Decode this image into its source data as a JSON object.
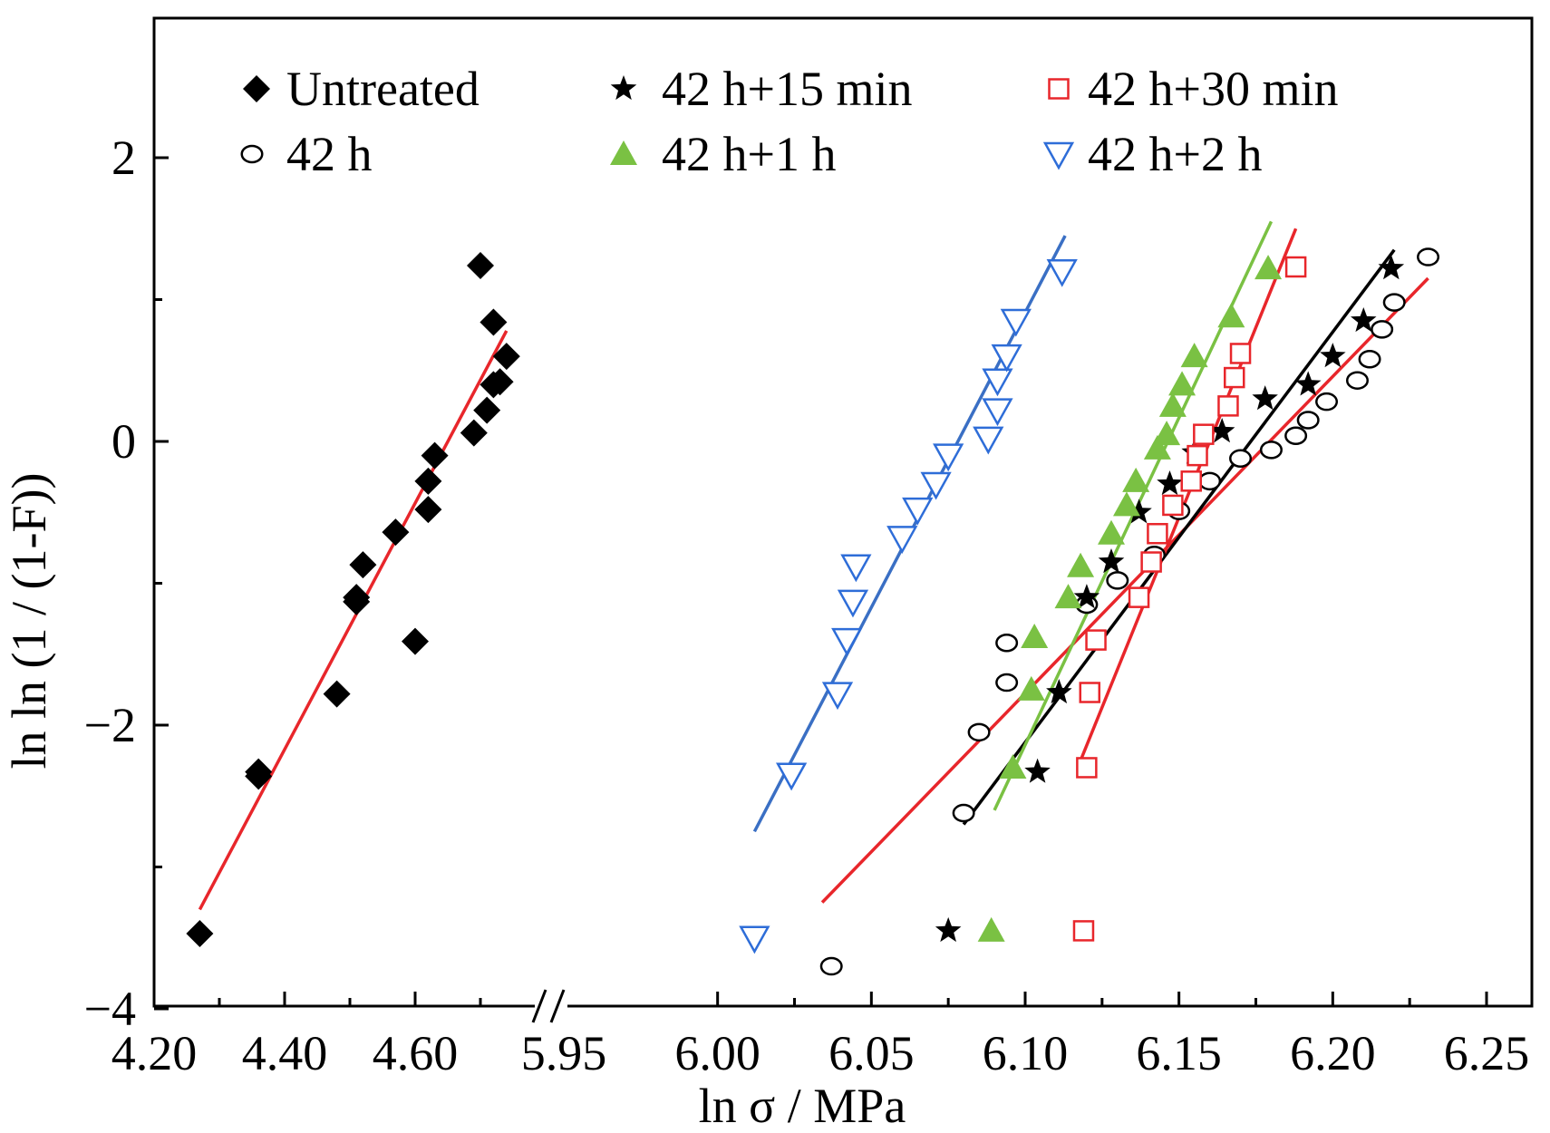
{
  "chart_data": {
    "type": "scatter",
    "title": "",
    "xlabel": "ln σ / MPa",
    "ylabel": "ln ln (1 / (1-F))",
    "x_axis_broken": true,
    "x_segments": [
      {
        "range": [
          4.2,
          4.75
        ],
        "ticks": [
          "4.20",
          "4.40",
          "4.60"
        ]
      },
      {
        "range": [
          5.95,
          6.25
        ],
        "ticks": [
          "5.95",
          "6.00",
          "6.05",
          "6.10",
          "6.15",
          "6.20",
          "6.25"
        ]
      }
    ],
    "ylim": [
      -4,
      3
    ],
    "y_ticks": [
      "−4",
      "−2",
      "0",
      "2"
    ],
    "grid": false,
    "legend_position": "top",
    "series": [
      {
        "name": "Untreated",
        "marker": "diamond",
        "color": "#000000",
        "fit_color": "#e8262b",
        "points": [
          [
            4.27,
            -3.47
          ],
          [
            4.36,
            -2.33
          ],
          [
            4.36,
            -2.36
          ],
          [
            4.48,
            -1.78
          ],
          [
            4.51,
            -1.13
          ],
          [
            4.51,
            -1.1
          ],
          [
            4.52,
            -0.87
          ],
          [
            4.57,
            -0.64
          ],
          [
            4.6,
            -1.41
          ],
          [
            4.62,
            -0.48
          ],
          [
            4.62,
            -0.28
          ],
          [
            4.63,
            -0.1
          ],
          [
            4.69,
            0.06
          ],
          [
            4.7,
            1.24
          ],
          [
            4.71,
            0.22
          ],
          [
            4.72,
            0.84
          ],
          [
            4.72,
            0.4
          ],
          [
            4.73,
            0.42
          ],
          [
            4.74,
            0.6
          ]
        ],
        "fit": [
          [
            4.27,
            -3.3
          ],
          [
            4.74,
            0.78
          ]
        ]
      },
      {
        "name": "42 h",
        "marker": "circle-open",
        "color": "#000000",
        "fit_color": "#e8262b",
        "points": [
          [
            6.037,
            -3.7
          ],
          [
            6.08,
            -2.62
          ],
          [
            6.085,
            -2.05
          ],
          [
            6.094,
            -1.42
          ],
          [
            6.094,
            -1.7
          ],
          [
            6.12,
            -1.15
          ],
          [
            6.13,
            -0.98
          ],
          [
            6.142,
            -0.8
          ],
          [
            6.15,
            -0.49
          ],
          [
            6.16,
            -0.28
          ],
          [
            6.17,
            -0.12
          ],
          [
            6.18,
            -0.06
          ],
          [
            6.188,
            0.04
          ],
          [
            6.192,
            0.15
          ],
          [
            6.198,
            0.28
          ],
          [
            6.208,
            0.43
          ],
          [
            6.212,
            0.58
          ],
          [
            6.216,
            0.79
          ],
          [
            6.22,
            0.98
          ],
          [
            6.231,
            1.3
          ]
        ],
        "fit": [
          [
            6.034,
            -3.25
          ],
          [
            6.231,
            1.15
          ]
        ]
      },
      {
        "name": "42 h+15 min",
        "marker": "star",
        "color": "#000000",
        "fit_color": "#000000",
        "points": [
          [
            6.075,
            -3.45
          ],
          [
            6.104,
            -2.33
          ],
          [
            6.111,
            -1.77
          ],
          [
            6.12,
            -1.1
          ],
          [
            6.128,
            -0.85
          ],
          [
            6.137,
            -0.5
          ],
          [
            6.147,
            -0.3
          ],
          [
            6.155,
            -0.08
          ],
          [
            6.164,
            0.07
          ],
          [
            6.178,
            0.3
          ],
          [
            6.192,
            0.4
          ],
          [
            6.2,
            0.6
          ],
          [
            6.21,
            0.85
          ],
          [
            6.219,
            1.22
          ]
        ],
        "fit": [
          [
            6.08,
            -2.7
          ],
          [
            6.22,
            1.35
          ]
        ]
      },
      {
        "name": "42 h+30 min",
        "marker": "square-open",
        "color": "#e8262b",
        "fit_color": "#e8262b",
        "points": [
          [
            6.119,
            -3.45
          ],
          [
            6.12,
            -2.3
          ],
          [
            6.121,
            -1.77
          ],
          [
            6.123,
            -1.4
          ],
          [
            6.137,
            -1.1
          ],
          [
            6.141,
            -0.85
          ],
          [
            6.143,
            -0.65
          ],
          [
            6.148,
            -0.45
          ],
          [
            6.154,
            -0.28
          ],
          [
            6.156,
            -0.1
          ],
          [
            6.158,
            0.05
          ],
          [
            6.166,
            0.25
          ],
          [
            6.168,
            0.45
          ],
          [
            6.17,
            0.62
          ],
          [
            6.188,
            1.23
          ]
        ],
        "fit": [
          [
            6.118,
            -2.25
          ],
          [
            6.188,
            1.5
          ]
        ]
      },
      {
        "name": "42 h+1 h",
        "marker": "triangle-up",
        "color": "#7ac143",
        "fit_color": "#7ac143",
        "points": [
          [
            6.089,
            -3.45
          ],
          [
            6.096,
            -2.3
          ],
          [
            6.102,
            -1.75
          ],
          [
            6.103,
            -1.38
          ],
          [
            6.114,
            -1.1
          ],
          [
            6.118,
            -0.88
          ],
          [
            6.128,
            -0.65
          ],
          [
            6.133,
            -0.45
          ],
          [
            6.136,
            -0.28
          ],
          [
            6.143,
            -0.05
          ],
          [
            6.146,
            0.05
          ],
          [
            6.148,
            0.25
          ],
          [
            6.151,
            0.4
          ],
          [
            6.155,
            0.6
          ],
          [
            6.167,
            0.88
          ],
          [
            6.179,
            1.22
          ]
        ],
        "fit": [
          [
            6.09,
            -2.6
          ],
          [
            6.18,
            1.55
          ]
        ]
      },
      {
        "name": "42 h+2 h",
        "marker": "triangle-down-open",
        "color": "#2e6dd8",
        "fit_color": "#3a6fc4",
        "points": [
          [
            6.012,
            -3.5
          ],
          [
            6.024,
            -2.35
          ],
          [
            6.039,
            -1.78
          ],
          [
            6.042,
            -1.4
          ],
          [
            6.044,
            -1.13
          ],
          [
            6.045,
            -0.88
          ],
          [
            6.06,
            -0.68
          ],
          [
            6.065,
            -0.48
          ],
          [
            6.071,
            -0.3
          ],
          [
            6.075,
            -0.1
          ],
          [
            6.088,
            0.02
          ],
          [
            6.091,
            0.22
          ],
          [
            6.091,
            0.43
          ],
          [
            6.094,
            0.6
          ],
          [
            6.097,
            0.85
          ],
          [
            6.112,
            1.2
          ]
        ],
        "fit": [
          [
            6.012,
            -2.75
          ],
          [
            6.113,
            1.45
          ]
        ]
      }
    ]
  }
}
